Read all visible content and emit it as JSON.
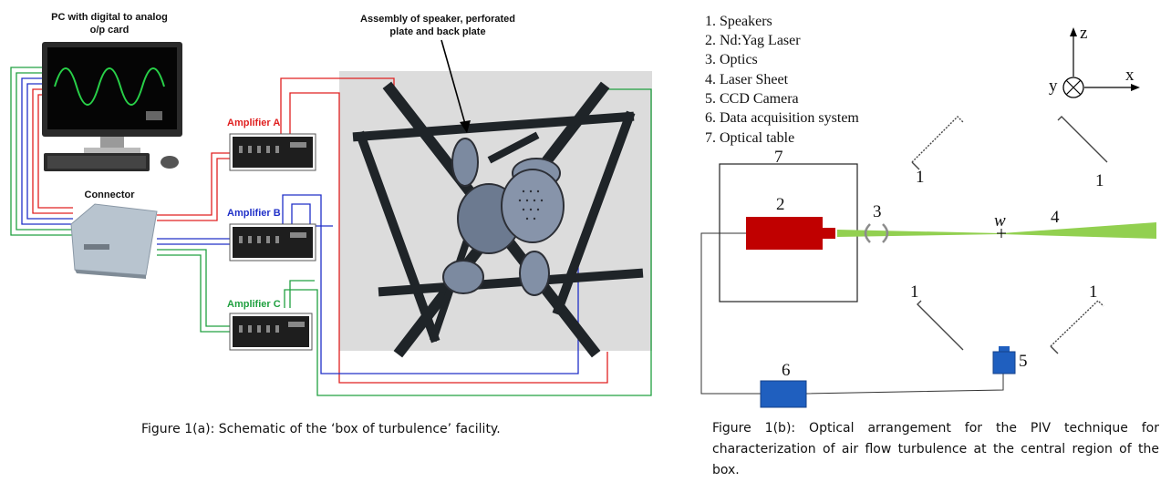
{
  "left_panel": {
    "pc_label": [
      "PC with digital to analog",
      "o/p card"
    ],
    "assembly_label": [
      "Assembly of speaker, perforated",
      "plate and back plate"
    ],
    "connector_label": "Connector",
    "amplifiers": [
      {
        "label": "Amplifier A",
        "color": "#e02020"
      },
      {
        "label": "Amplifier B",
        "color": "#2030c8"
      },
      {
        "label": "Amplifier C",
        "color": "#20a040"
      }
    ],
    "caption": "Figure 1(a): Schematic of the ‘box of turbulence’ facility."
  },
  "right_panel": {
    "legend": [
      "1. Speakers",
      "2. Nd:Yag Laser",
      "3. Optics",
      "4. Laser Sheet",
      "5. CCD Camera",
      "6. Data acquisition system",
      "7. Optical table"
    ],
    "axes": {
      "z": "z",
      "y": "y",
      "x": "x"
    },
    "numbers": {
      "speaker": "1",
      "laser": "2",
      "optics": "3",
      "sheet": "4",
      "camera": "5",
      "daq": "6",
      "table": "7",
      "w": "w"
    },
    "colors": {
      "laser": "#c00000",
      "sheet": "#92d050",
      "camera": "#1f5fbf",
      "daq": "#1f5fbf"
    },
    "caption": "Figure 1(b): Optical arrangement for the PIV technique for characterization of air flow turbulence at the central region of the box."
  }
}
